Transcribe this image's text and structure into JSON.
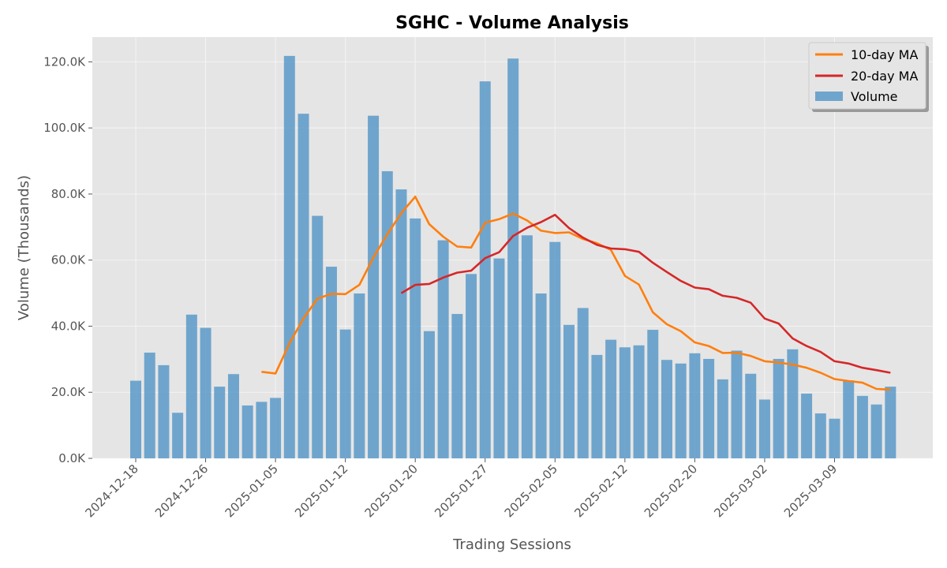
{
  "chart_data": {
    "type": "bar",
    "title": "SGHC - Volume Analysis",
    "xlabel": "Trading Sessions",
    "ylabel": "Volume (Thousands)",
    "ylim": [
      0,
      127.5
    ],
    "y_ticks": [
      "0.0K",
      "20.0K",
      "40.0K",
      "60.0K",
      "80.0K",
      "100.0K",
      "120.0K"
    ],
    "y_tick_values": [
      0,
      20,
      40,
      60,
      80,
      100,
      120
    ],
    "x_tick_labels": [
      "2024-12-18",
      "2024-12-26",
      "2025-01-05",
      "2025-01-12",
      "2025-01-20",
      "2025-01-27",
      "2025-02-05",
      "2025-02-12",
      "2025-02-20",
      "2025-03-02",
      "2025-03-09"
    ],
    "x_tick_index": [
      0,
      5,
      10,
      15,
      20,
      25,
      30,
      35,
      40,
      45,
      50
    ],
    "grid": true,
    "legend_position": "top-right",
    "series": [
      {
        "name": "Volume",
        "kind": "bar",
        "color": "#5b9ac9",
        "values": [
          23.5,
          32.0,
          28.2,
          13.8,
          43.5,
          39.5,
          21.7,
          25.5,
          16.0,
          17.1,
          18.3,
          121.8,
          104.3,
          73.4,
          58.0,
          39.0,
          49.9,
          103.7,
          86.9,
          81.4,
          72.6,
          38.5,
          66.0,
          43.7,
          55.8,
          114.1,
          60.5,
          121.0,
          67.5,
          49.9,
          65.5,
          40.4,
          45.5,
          31.3,
          35.9,
          33.6,
          34.2,
          38.9,
          29.8,
          28.7,
          31.8,
          30.1,
          23.9,
          32.6,
          25.6,
          17.8,
          30.1,
          33.0,
          19.6,
          13.6,
          12.0,
          23.6,
          18.9,
          16.3,
          21.7
        ]
      },
      {
        "name": "10-day MA",
        "kind": "line",
        "color": "#ff7f0e",
        "values": [
          null,
          null,
          null,
          null,
          null,
          null,
          null,
          null,
          null,
          26.2,
          25.7,
          34.8,
          42.3,
          48.3,
          49.8,
          49.7,
          52.5,
          60.8,
          67.8,
          74.2,
          79.2,
          70.9,
          67.1,
          64.1,
          63.8,
          71.3,
          72.4,
          74.1,
          72.0,
          68.9,
          68.2,
          68.4,
          66.4,
          65.1,
          63.1,
          55.2,
          52.6,
          44.2,
          40.6,
          38.5,
          35.1,
          34.0,
          31.9,
          32.0,
          31.0,
          29.4,
          29.0,
          28.4,
          27.4,
          25.9,
          24.0,
          23.4,
          22.9,
          21.0,
          20.8
        ]
      },
      {
        "name": "20-day MA",
        "kind": "line",
        "color": "#d62728",
        "values": [
          null,
          null,
          null,
          null,
          null,
          null,
          null,
          null,
          null,
          null,
          null,
          null,
          null,
          null,
          null,
          null,
          null,
          null,
          null,
          50.0,
          52.5,
          52.8,
          54.7,
          56.2,
          56.8,
          60.6,
          62.4,
          67.3,
          69.8,
          71.5,
          73.7,
          69.7,
          66.8,
          64.6,
          63.5,
          63.3,
          62.5,
          59.2,
          56.4,
          53.7,
          51.7,
          51.2,
          49.2,
          48.6,
          47.1,
          42.3,
          40.8,
          36.3,
          34.0,
          32.2,
          29.4,
          28.7,
          27.4,
          26.7,
          25.9
        ]
      }
    ],
    "legend_order": [
      "10-day MA",
      "20-day MA",
      "Volume"
    ]
  }
}
